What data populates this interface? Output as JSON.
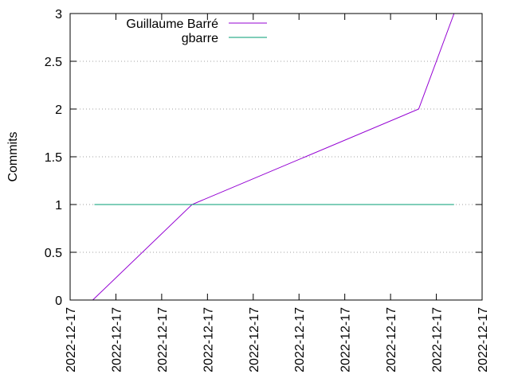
{
  "chart_data": {
    "type": "line",
    "title": "",
    "xlabel": "",
    "ylabel": "Commits",
    "ylim": [
      0,
      3
    ],
    "yticks": [
      0,
      0.5,
      1,
      1.5,
      2,
      2.5,
      3
    ],
    "ytick_labels": [
      "0",
      "0.5",
      "1",
      "1.5",
      "2",
      "2.5",
      "3"
    ],
    "xtick_labels": [
      "2022-12-17",
      "2022-12-17",
      "2022-12-17",
      "2022-12-17",
      "2022-12-17",
      "2022-12-17",
      "2022-12-17",
      "2022-12-17",
      "2022-12-17",
      "2022-12-17"
    ],
    "grid": "horizontal dotted",
    "legend_position": "top-left",
    "series": [
      {
        "name": "Guillaume Barré",
        "color": "#9400d3",
        "points": [
          {
            "t": 0.055,
            "y": 0
          },
          {
            "t": 0.296,
            "y": 1
          },
          {
            "t": 0.846,
            "y": 2
          },
          {
            "t": 0.932,
            "y": 3
          }
        ]
      },
      {
        "name": "gbarre",
        "color": "#009e73",
        "points": [
          {
            "t": 0.059,
            "y": 1
          },
          {
            "t": 0.932,
            "y": 1
          }
        ]
      }
    ]
  }
}
